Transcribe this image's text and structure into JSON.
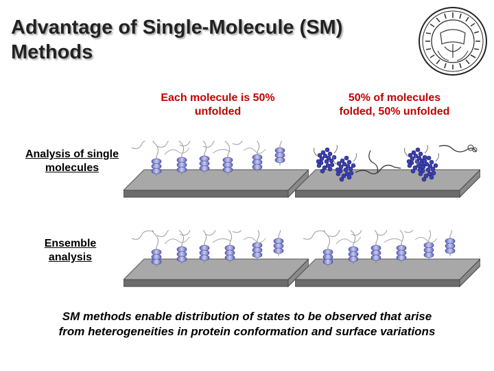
{
  "slide": {
    "title_line1": "Advantage of Single-Molecule (SM)",
    "title_line2": "Methods"
  },
  "columns": {
    "left_line1": "Each molecule is 50%",
    "left_line2": "unfolded",
    "right_line1": "50% of molecules",
    "right_line2": "folded, 50% unfolded"
  },
  "rows": {
    "top_line1": "Analysis of single",
    "top_line2": "molecules",
    "bottom_line1": "Ensemble",
    "bottom_line2": "analysis"
  },
  "caption": {
    "line1": "SM methods enable distribution of states to be observed that arise",
    "line2": "from heterogeneities in protein conformation and surface variations"
  },
  "colors": {
    "helix": "#8f93d8",
    "folded_protein": "#3a3fb0",
    "surface_top": "#a8a8a8",
    "surface_side": "#6c6c6c",
    "column_head": "#c00000"
  },
  "seal": {
    "icon": "university-seal-icon"
  }
}
